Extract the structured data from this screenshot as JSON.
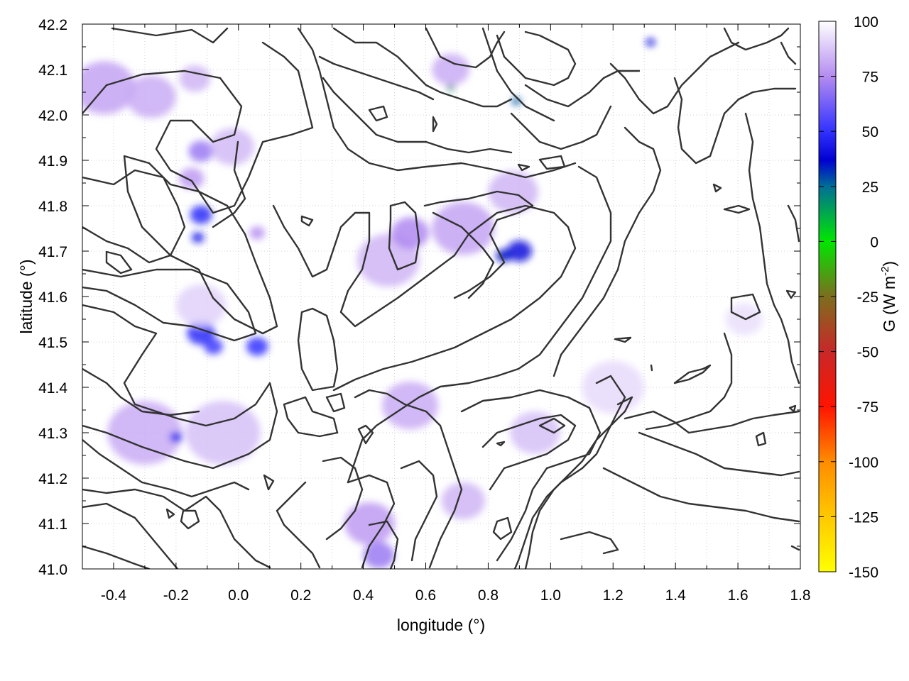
{
  "chart_data": {
    "type": "heatmap",
    "xlabel": "longitude (°)",
    "ylabel": "latitude (°)",
    "colorbar_label": "G (W m",
    "colorbar_label_sup": "-2",
    "colorbar_label_end": ")",
    "xlim": [
      -0.5,
      1.8
    ],
    "ylim": [
      41.0,
      42.2
    ],
    "x_ticks": [
      "-0.4",
      "-0.2",
      "0.0",
      "0.2",
      "0.4",
      "0.6",
      "0.8",
      "1.0",
      "1.2",
      "1.4",
      "1.6",
      "1.8"
    ],
    "x_tick_values": [
      -0.4,
      -0.2,
      0.0,
      0.2,
      0.4,
      0.6,
      0.8,
      1.0,
      1.2,
      1.4,
      1.6,
      1.8
    ],
    "y_ticks": [
      "41.0",
      "41.1",
      "41.2",
      "41.3",
      "41.4",
      "41.5",
      "41.6",
      "41.7",
      "41.8",
      "41.9",
      "42.0",
      "42.1",
      "42.2"
    ],
    "y_tick_values": [
      41.0,
      41.1,
      41.2,
      41.3,
      41.4,
      41.5,
      41.6,
      41.7,
      41.8,
      41.9,
      42.0,
      42.1,
      42.2
    ],
    "colorbar_range": [
      -150,
      100
    ],
    "colorbar_ticks": [
      "100",
      "75",
      "50",
      "25",
      "0",
      "-25",
      "-50",
      "-75",
      "-100",
      "-125",
      "-150"
    ],
    "colorbar_tick_values": [
      100,
      75,
      50,
      25,
      0,
      -25,
      -50,
      -75,
      -100,
      -125,
      -150
    ],
    "colorscale": [
      {
        "value": 100,
        "color": "#ffffff"
      },
      {
        "value": 75,
        "color": "#b48cf0"
      },
      {
        "value": 50,
        "color": "#3232ff"
      },
      {
        "value": 37,
        "color": "#0000d2"
      },
      {
        "value": 25,
        "color": "#006e96"
      },
      {
        "value": 0,
        "color": "#00e600"
      },
      {
        "value": -25,
        "color": "#7d6e1e"
      },
      {
        "value": -50,
        "color": "#c82828"
      },
      {
        "value": -75,
        "color": "#ff1400"
      },
      {
        "value": -100,
        "color": "#ff8c00"
      },
      {
        "value": -125,
        "color": "#ffc800"
      },
      {
        "value": -150,
        "color": "#ffff00"
      }
    ],
    "field_features": [
      {
        "lon": -0.43,
        "lat": 42.06,
        "radius": 0.1,
        "value": 80
      },
      {
        "lon": -0.28,
        "lat": 42.04,
        "radius": 0.08,
        "value": 82
      },
      {
        "lon": -0.14,
        "lat": 42.08,
        "radius": 0.05,
        "value": 84
      },
      {
        "lon": -0.12,
        "lat": 41.92,
        "radius": 0.04,
        "value": 70
      },
      {
        "lon": -0.15,
        "lat": 41.86,
        "radius": 0.04,
        "value": 78
      },
      {
        "lon": -0.12,
        "lat": 41.78,
        "radius": 0.035,
        "value": 48
      },
      {
        "lon": -0.13,
        "lat": 41.73,
        "radius": 0.02,
        "value": 44
      },
      {
        "lon": -0.02,
        "lat": 41.93,
        "radius": 0.07,
        "value": 85
      },
      {
        "lon": 0.06,
        "lat": 41.74,
        "radius": 0.025,
        "value": 76
      },
      {
        "lon": -0.12,
        "lat": 41.52,
        "radius": 0.045,
        "value": 48
      },
      {
        "lon": -0.08,
        "lat": 41.49,
        "radius": 0.03,
        "value": 52
      },
      {
        "lon": 0.06,
        "lat": 41.49,
        "radius": 0.035,
        "value": 50
      },
      {
        "lon": -0.12,
        "lat": 41.58,
        "radius": 0.08,
        "value": 90
      },
      {
        "lon": -0.3,
        "lat": 41.3,
        "radius": 0.12,
        "value": 82
      },
      {
        "lon": -0.05,
        "lat": 41.3,
        "radius": 0.12,
        "value": 86
      },
      {
        "lon": -0.2,
        "lat": 41.29,
        "radius": 0.02,
        "value": 45
      },
      {
        "lon": 0.48,
        "lat": 41.68,
        "radius": 0.1,
        "value": 84
      },
      {
        "lon": 0.55,
        "lat": 41.74,
        "radius": 0.06,
        "value": 74
      },
      {
        "lon": 0.72,
        "lat": 41.75,
        "radius": 0.1,
        "value": 80
      },
      {
        "lon": 0.88,
        "lat": 41.83,
        "radius": 0.08,
        "value": 84
      },
      {
        "lon": 0.9,
        "lat": 41.7,
        "radius": 0.04,
        "value": 40
      },
      {
        "lon": 0.85,
        "lat": 41.69,
        "radius": 0.025,
        "value": 35
      },
      {
        "lon": 0.68,
        "lat": 42.1,
        "radius": 0.06,
        "value": 82
      },
      {
        "lon": 0.68,
        "lat": 42.06,
        "radius": 0.012,
        "value": 20
      },
      {
        "lon": 0.89,
        "lat": 42.03,
        "radius": 0.015,
        "value": 28
      },
      {
        "lon": 1.32,
        "lat": 42.16,
        "radius": 0.015,
        "value": 40
      },
      {
        "lon": 0.55,
        "lat": 41.36,
        "radius": 0.09,
        "value": 82
      },
      {
        "lon": 0.42,
        "lat": 41.1,
        "radius": 0.08,
        "value": 78
      },
      {
        "lon": 0.45,
        "lat": 41.03,
        "radius": 0.05,
        "value": 70
      },
      {
        "lon": 0.72,
        "lat": 41.15,
        "radius": 0.07,
        "value": 84
      },
      {
        "lon": 0.95,
        "lat": 41.3,
        "radius": 0.08,
        "value": 86
      },
      {
        "lon": 1.2,
        "lat": 41.4,
        "radius": 0.1,
        "value": 92
      },
      {
        "lon": 1.62,
        "lat": 41.55,
        "radius": 0.06,
        "value": 93
      }
    ]
  }
}
